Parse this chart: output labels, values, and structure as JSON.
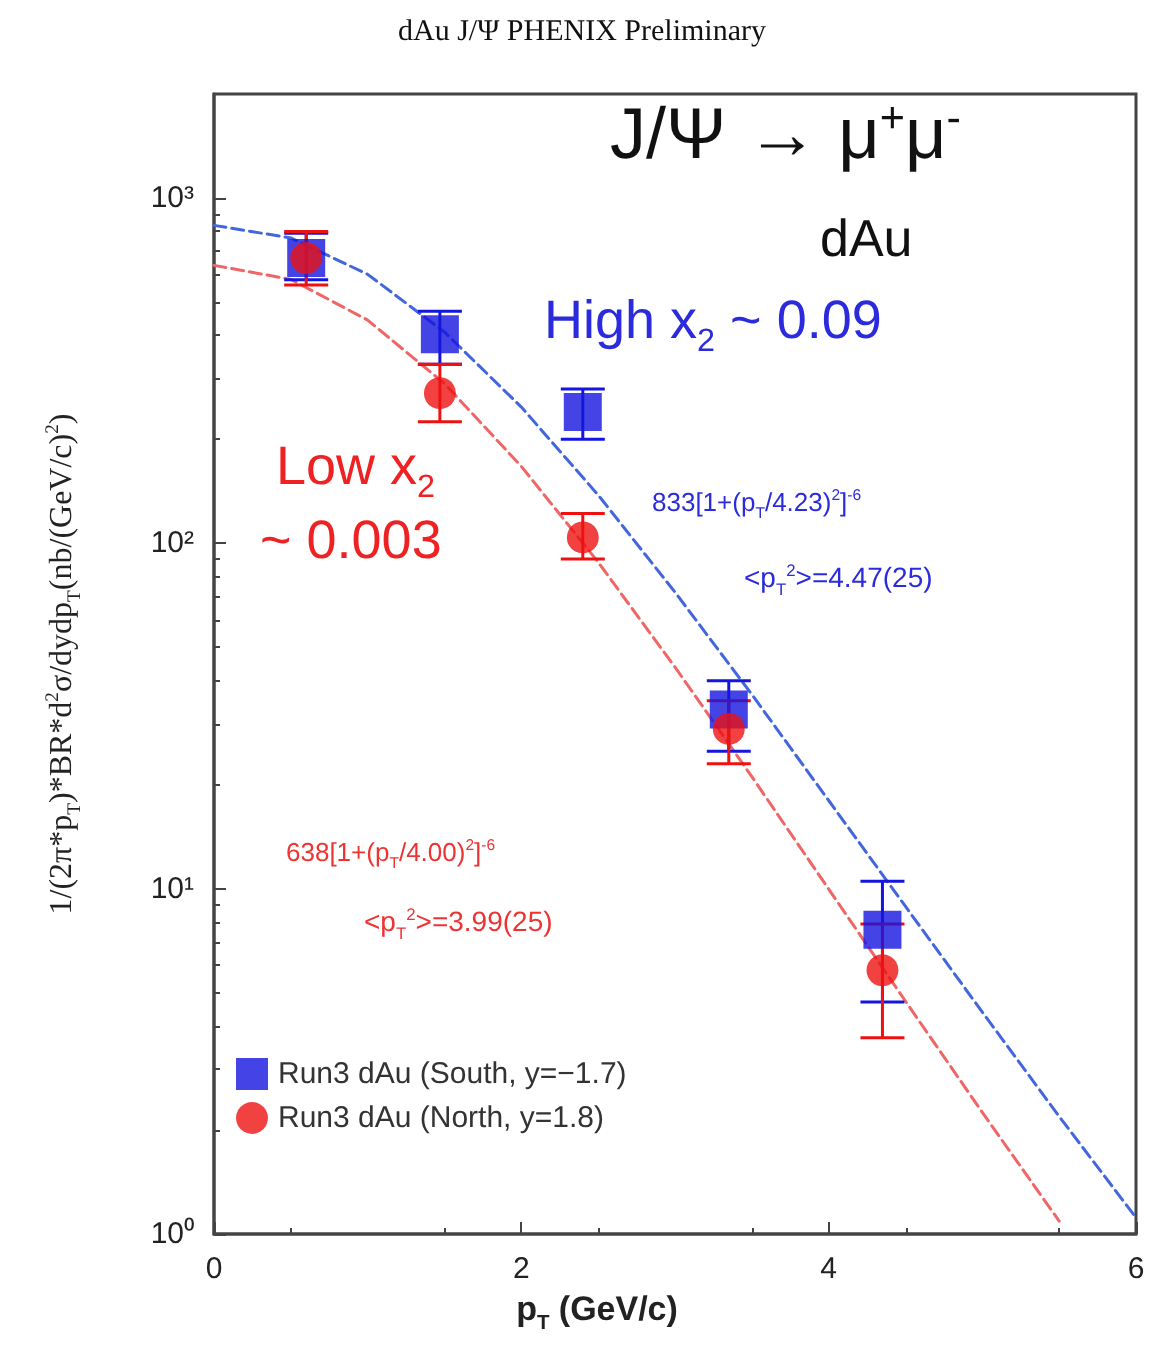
{
  "chart_data": {
    "type": "scatter",
    "title": "dAu J/Ψ  PHENIX Preliminary",
    "xlabel": "p$_{T}$ (GeV/c)",
    "ylabel": "1/(2π*p$_{T}$)*BR*d$^{2}$σ/dydp$_{T}$(nb/(GeV/c)$^{2}$)",
    "annotations": [
      "J/Ψ → μ$^{+}$μ$^{-}$",
      "dAu",
      "High x$_{2}$ ~ 0.09",
      "Low x$_{2}$",
      "~ 0.003",
      "833[1+(p$_{T}$/4.23)$^{2}$]$^{-6}$",
      "<p$_{T}$$^{2}$>=4.47(25)",
      "638[1+(p$_{T}$/4.00)$^{2}$]$^{-6}$",
      "<p$_{T}$$^{2}$>=3.99(25)"
    ],
    "log": "y",
    "grid": false,
    "legend": "bottom left",
    "xlim": [
      0,
      6
    ],
    "xticks": [
      0,
      2,
      4,
      6
    ],
    "ylim": [
      1,
      2000
    ],
    "yticks": [
      {
        "value": 1,
        "label": "10⁰"
      },
      {
        "value": 10,
        "label": "10¹"
      },
      {
        "value": 100,
        "label": "10²"
      },
      {
        "value": 1000,
        "label": "10³"
      }
    ],
    "series": [
      {
        "name": "Run3 dAu (South, y=−1.7)",
        "marker": "square",
        "color": "#1515e0",
        "x": [
          0.6,
          1.47,
          2.4,
          3.35,
          4.35
        ],
        "values": [
          670,
          403,
          240,
          33,
          7.6
        ],
        "errors": [
          [
            580,
            790
          ],
          [
            330,
            470
          ],
          [
            200,
            280
          ],
          [
            25,
            40
          ],
          [
            4.7,
            10.5
          ]
        ]
      },
      {
        "name": "Run3 dAu (North, y=1.8)",
        "marker": "circle",
        "color": "#ee1111",
        "x": [
          0.6,
          1.47,
          2.4,
          3.35,
          4.35
        ],
        "values": [
          670,
          272,
          104,
          29,
          5.8
        ],
        "errors": [
          [
            560,
            800
          ],
          [
            225,
            330
          ],
          [
            90,
            122
          ],
          [
            23,
            35
          ],
          [
            3.7,
            7.9
          ]
        ]
      },
      {
        "type": "line",
        "marker": "none",
        "line_style": "dashed",
        "color": "#4466dd",
        "x": [
          0,
          0.5,
          1,
          1.5,
          2,
          2.5,
          3,
          3.5,
          4,
          4.5,
          5,
          5.5,
          6
        ],
        "values": [
          833,
          766,
          601,
          409,
          248,
          138,
          72.2,
          36.5,
          18.0,
          8.88,
          4.39,
          2.19,
          1.115
        ]
      },
      {
        "type": "line",
        "marker": "none",
        "line_style": "dashed",
        "color": "#ee6666",
        "x": [
          0,
          0.5,
          1,
          1.5,
          2,
          2.5,
          3,
          3.5,
          4,
          4.5,
          5,
          5.5
        ],
        "values": [
          638,
          581,
          443,
          290,
          167,
          88.2,
          43.8,
          21.1,
          9.97,
          4.72,
          2.25,
          1.09
        ]
      }
    ]
  }
}
